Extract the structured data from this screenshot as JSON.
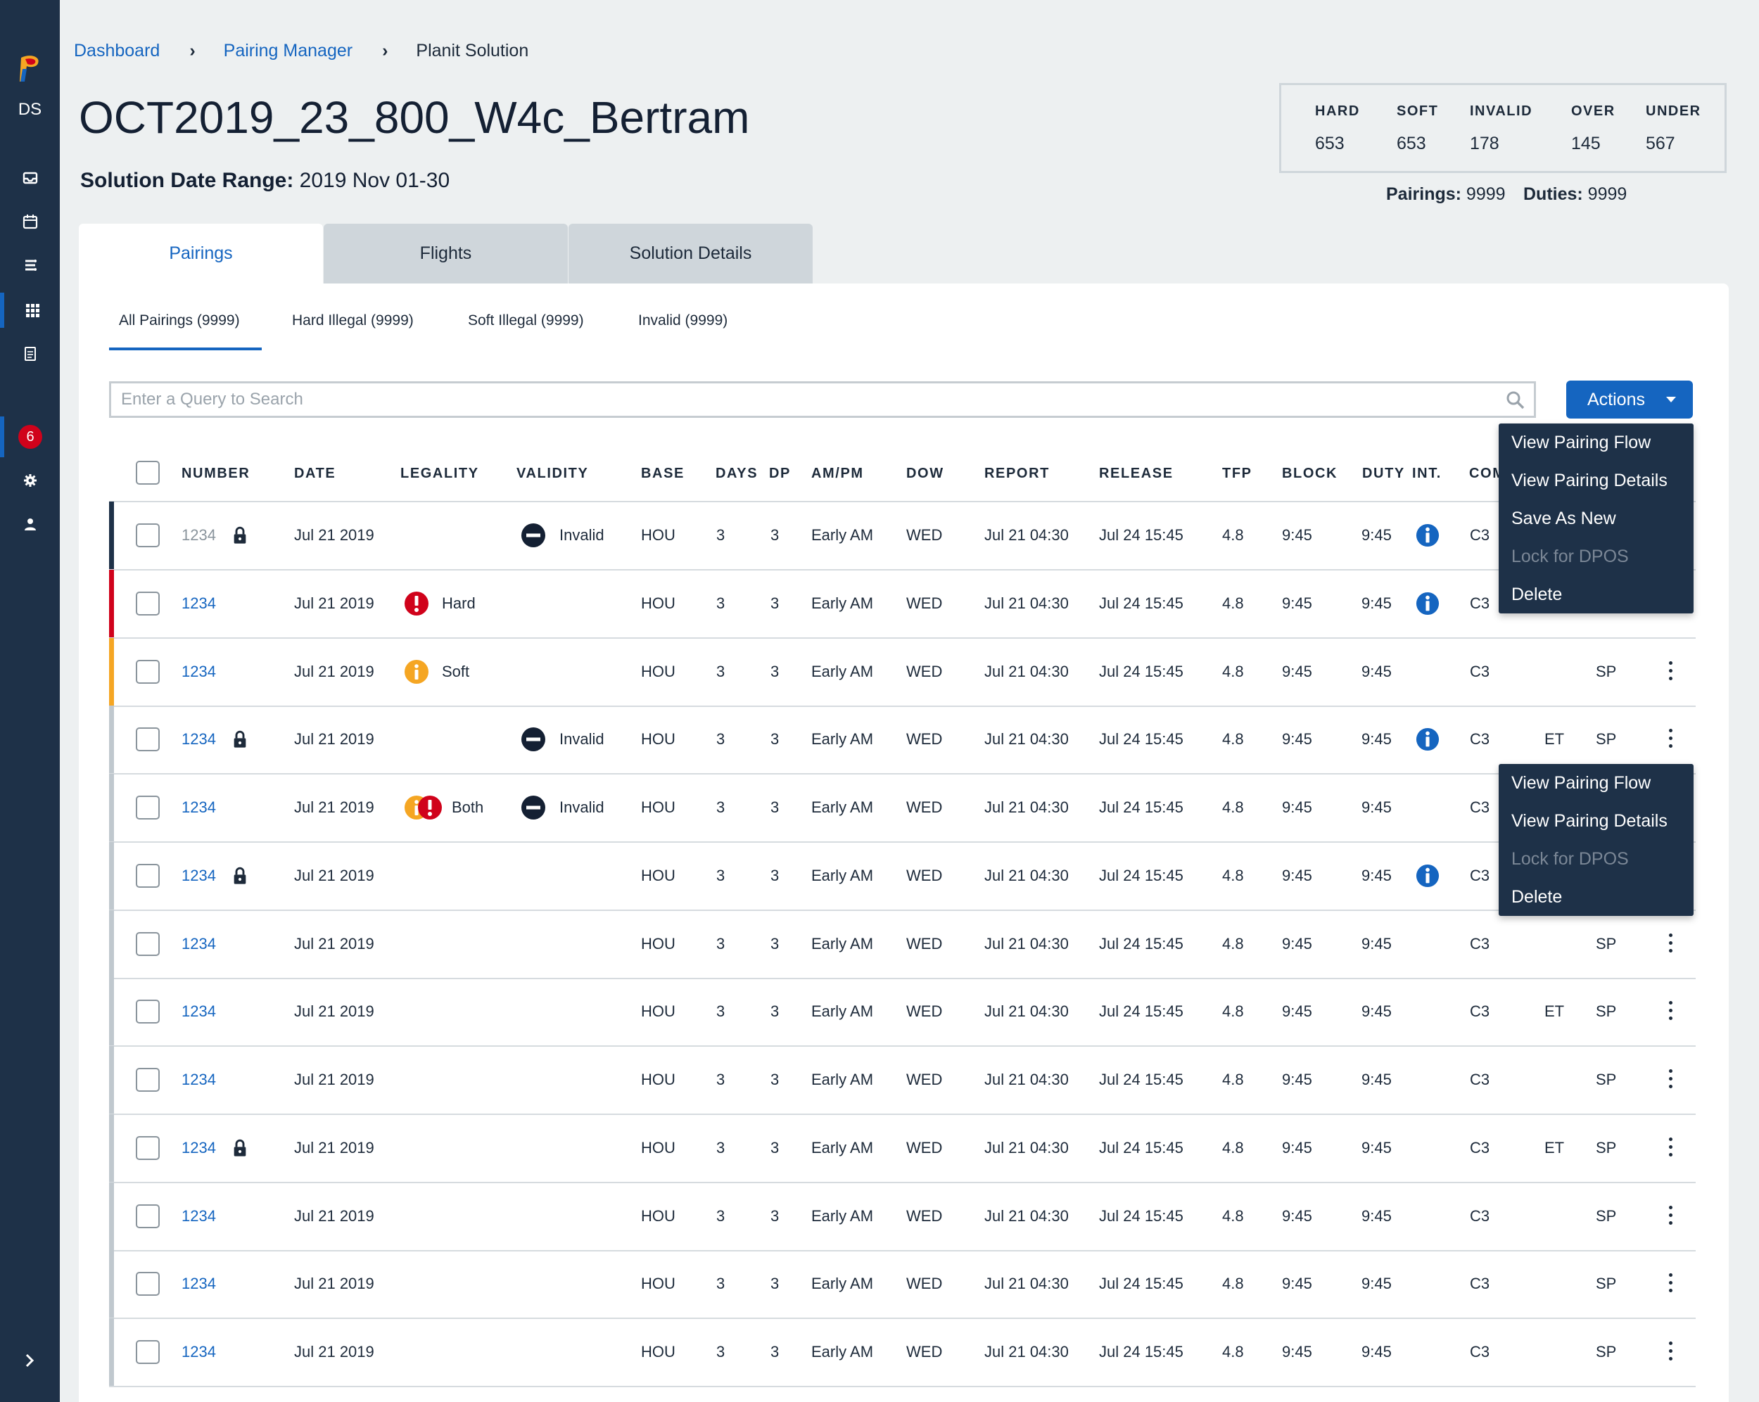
{
  "app": {
    "initials": "DS",
    "notification_count": "6"
  },
  "breadcrumb": {
    "items": [
      "Dashboard",
      "Pairing Manager"
    ],
    "current": "Planit Solution"
  },
  "page": {
    "title": "OCT2019_23_800_W4c_Bertram",
    "date_range_label": "Solution Date Range:",
    "date_range_value": " 2019 Nov 01-30"
  },
  "stats": [
    {
      "label": "HARD",
      "value": "653"
    },
    {
      "label": "SOFT",
      "value": "653"
    },
    {
      "label": "INVALID",
      "value": "178"
    },
    {
      "label": "OVER",
      "value": "145"
    },
    {
      "label": "UNDER",
      "value": "567"
    }
  ],
  "counts": {
    "pairings_label": "Pairings:",
    "pairings_value": " 9999",
    "duties_label": "Duties:",
    "duties_value": " 9999"
  },
  "tabs": [
    "Pairings",
    "Flights",
    "Solution Details"
  ],
  "sub_tabs": [
    "All Pairings (9999)",
    "Hard Illegal (9999)",
    "Soft Illegal (9999)",
    "Invalid (9999)"
  ],
  "search": {
    "placeholder": "Enter a Query to Search"
  },
  "actions": {
    "label": "Actions"
  },
  "columns": [
    "NUMBER",
    "DATE",
    "LEGALITY",
    "VALIDITY",
    "BASE",
    "DAYS",
    "DP",
    "AM/PM",
    "DOW",
    "REPORT",
    "RELEASE",
    "TFP",
    "BLOCK",
    "DUTY",
    "INT.",
    "COM"
  ],
  "rows": [
    {
      "number": "1234",
      "locked": true,
      "dim": true,
      "date": "Jul 21 2019",
      "legality": "",
      "legality_icon": "",
      "validity": "Invalid",
      "base": "HOU",
      "days": "3",
      "dp": "3",
      "ampm": "Early AM",
      "dow": "WED",
      "report": "Jul 21 04:30",
      "release": "Jul 24 15:45",
      "tfp": "4.8",
      "block": "9:45",
      "duty": "9:45",
      "info": true,
      "com": "C3",
      "et": "",
      "sp": "",
      "stripe": "#1e3148"
    },
    {
      "number": "1234",
      "locked": false,
      "dim": false,
      "date": "Jul 21 2019",
      "legality": "Hard",
      "legality_icon": "hard",
      "validity": "",
      "base": "HOU",
      "days": "3",
      "dp": "3",
      "ampm": "Early AM",
      "dow": "WED",
      "report": "Jul 21 04:30",
      "release": "Jul 24 15:45",
      "tfp": "4.8",
      "block": "9:45",
      "duty": "9:45",
      "info": true,
      "com": "C3",
      "et": "",
      "sp": "",
      "stripe": "#d0021b"
    },
    {
      "number": "1234",
      "locked": false,
      "dim": false,
      "date": "Jul 21 2019",
      "legality": "Soft",
      "legality_icon": "soft",
      "validity": "",
      "base": "HOU",
      "days": "3",
      "dp": "3",
      "ampm": "Early AM",
      "dow": "WED",
      "report": "Jul 21 04:30",
      "release": "Jul 24 15:45",
      "tfp": "4.8",
      "block": "9:45",
      "duty": "9:45",
      "info": false,
      "com": "C3",
      "et": "",
      "sp": "SP",
      "stripe": "#f5a623"
    },
    {
      "number": "1234",
      "locked": true,
      "dim": false,
      "date": "Jul 21 2019",
      "legality": "",
      "legality_icon": "",
      "validity": "Invalid",
      "base": "HOU",
      "days": "3",
      "dp": "3",
      "ampm": "Early AM",
      "dow": "WED",
      "report": "Jul 21 04:30",
      "release": "Jul 24 15:45",
      "tfp": "4.8",
      "block": "9:45",
      "duty": "9:45",
      "info": true,
      "com": "C3",
      "et": "ET",
      "sp": "SP",
      "stripe": "#c0c8ce"
    },
    {
      "number": "1234",
      "locked": false,
      "dim": false,
      "date": "Jul 21 2019",
      "legality": "Both",
      "legality_icon": "both",
      "validity": "Invalid",
      "base": "HOU",
      "days": "3",
      "dp": "3",
      "ampm": "Early AM",
      "dow": "WED",
      "report": "Jul 21 04:30",
      "release": "Jul 24 15:45",
      "tfp": "4.8",
      "block": "9:45",
      "duty": "9:45",
      "info": false,
      "com": "C3",
      "et": "",
      "sp": "",
      "stripe": "#c0c8ce"
    },
    {
      "number": "1234",
      "locked": true,
      "dim": false,
      "date": "Jul 21 2019",
      "legality": "",
      "legality_icon": "",
      "validity": "",
      "base": "HOU",
      "days": "3",
      "dp": "3",
      "ampm": "Early AM",
      "dow": "WED",
      "report": "Jul 21 04:30",
      "release": "Jul 24 15:45",
      "tfp": "4.8",
      "block": "9:45",
      "duty": "9:45",
      "info": true,
      "com": "C3",
      "et": "",
      "sp": "",
      "stripe": "#c0c8ce"
    },
    {
      "number": "1234",
      "locked": false,
      "dim": false,
      "date": "Jul 21 2019",
      "legality": "",
      "legality_icon": "",
      "validity": "",
      "base": "HOU",
      "days": "3",
      "dp": "3",
      "ampm": "Early AM",
      "dow": "WED",
      "report": "Jul 21 04:30",
      "release": "Jul 24 15:45",
      "tfp": "4.8",
      "block": "9:45",
      "duty": "9:45",
      "info": false,
      "com": "C3",
      "et": "",
      "sp": "SP",
      "stripe": "#c0c8ce"
    },
    {
      "number": "1234",
      "locked": false,
      "dim": false,
      "date": "Jul 21 2019",
      "legality": "",
      "legality_icon": "",
      "validity": "",
      "base": "HOU",
      "days": "3",
      "dp": "3",
      "ampm": "Early AM",
      "dow": "WED",
      "report": "Jul 21 04:30",
      "release": "Jul 24 15:45",
      "tfp": "4.8",
      "block": "9:45",
      "duty": "9:45",
      "info": false,
      "com": "C3",
      "et": "ET",
      "sp": "SP",
      "stripe": "#c0c8ce"
    },
    {
      "number": "1234",
      "locked": false,
      "dim": false,
      "date": "Jul 21 2019",
      "legality": "",
      "legality_icon": "",
      "validity": "",
      "base": "HOU",
      "days": "3",
      "dp": "3",
      "ampm": "Early AM",
      "dow": "WED",
      "report": "Jul 21 04:30",
      "release": "Jul 24 15:45",
      "tfp": "4.8",
      "block": "9:45",
      "duty": "9:45",
      "info": false,
      "com": "C3",
      "et": "",
      "sp": "SP",
      "stripe": "#c0c8ce"
    },
    {
      "number": "1234",
      "locked": true,
      "dim": false,
      "date": "Jul 21 2019",
      "legality": "",
      "legality_icon": "",
      "validity": "",
      "base": "HOU",
      "days": "3",
      "dp": "3",
      "ampm": "Early AM",
      "dow": "WED",
      "report": "Jul 21 04:30",
      "release": "Jul 24 15:45",
      "tfp": "4.8",
      "block": "9:45",
      "duty": "9:45",
      "info": false,
      "com": "C3",
      "et": "ET",
      "sp": "SP",
      "stripe": "#c0c8ce"
    },
    {
      "number": "1234",
      "locked": false,
      "dim": false,
      "date": "Jul 21 2019",
      "legality": "",
      "legality_icon": "",
      "validity": "",
      "base": "HOU",
      "days": "3",
      "dp": "3",
      "ampm": "Early AM",
      "dow": "WED",
      "report": "Jul 21 04:30",
      "release": "Jul 24 15:45",
      "tfp": "4.8",
      "block": "9:45",
      "duty": "9:45",
      "info": false,
      "com": "C3",
      "et": "",
      "sp": "SP",
      "stripe": "#c0c8ce"
    },
    {
      "number": "1234",
      "locked": false,
      "dim": false,
      "date": "Jul 21 2019",
      "legality": "",
      "legality_icon": "",
      "validity": "",
      "base": "HOU",
      "days": "3",
      "dp": "3",
      "ampm": "Early AM",
      "dow": "WED",
      "report": "Jul 21 04:30",
      "release": "Jul 24 15:45",
      "tfp": "4.8",
      "block": "9:45",
      "duty": "9:45",
      "info": false,
      "com": "C3",
      "et": "",
      "sp": "SP",
      "stripe": "#c0c8ce"
    },
    {
      "number": "1234",
      "locked": false,
      "dim": false,
      "date": "Jul 21 2019",
      "legality": "",
      "legality_icon": "",
      "validity": "",
      "base": "HOU",
      "days": "3",
      "dp": "3",
      "ampm": "Early AM",
      "dow": "WED",
      "report": "Jul 21 04:30",
      "release": "Jul 24 15:45",
      "tfp": "4.8",
      "block": "9:45",
      "duty": "9:45",
      "info": false,
      "com": "C3",
      "et": "",
      "sp": "SP",
      "stripe": "#c0c8ce"
    }
  ],
  "menu_actions": {
    "items": [
      "View Pairing Flow",
      "View Pairing Details",
      "Save As New",
      "Lock for DPOS",
      "Delete"
    ],
    "disabled": [
      "Lock for DPOS"
    ]
  },
  "menu_row": {
    "items": [
      "View Pairing Flow",
      "View Pairing Details",
      "Lock for DPOS",
      "Delete"
    ],
    "disabled": [
      "Lock for DPOS"
    ]
  },
  "colors": {
    "accent": "#1565c0",
    "sidebar": "#1e3148",
    "hard": "#d0021b",
    "soft": "#f5a623"
  }
}
